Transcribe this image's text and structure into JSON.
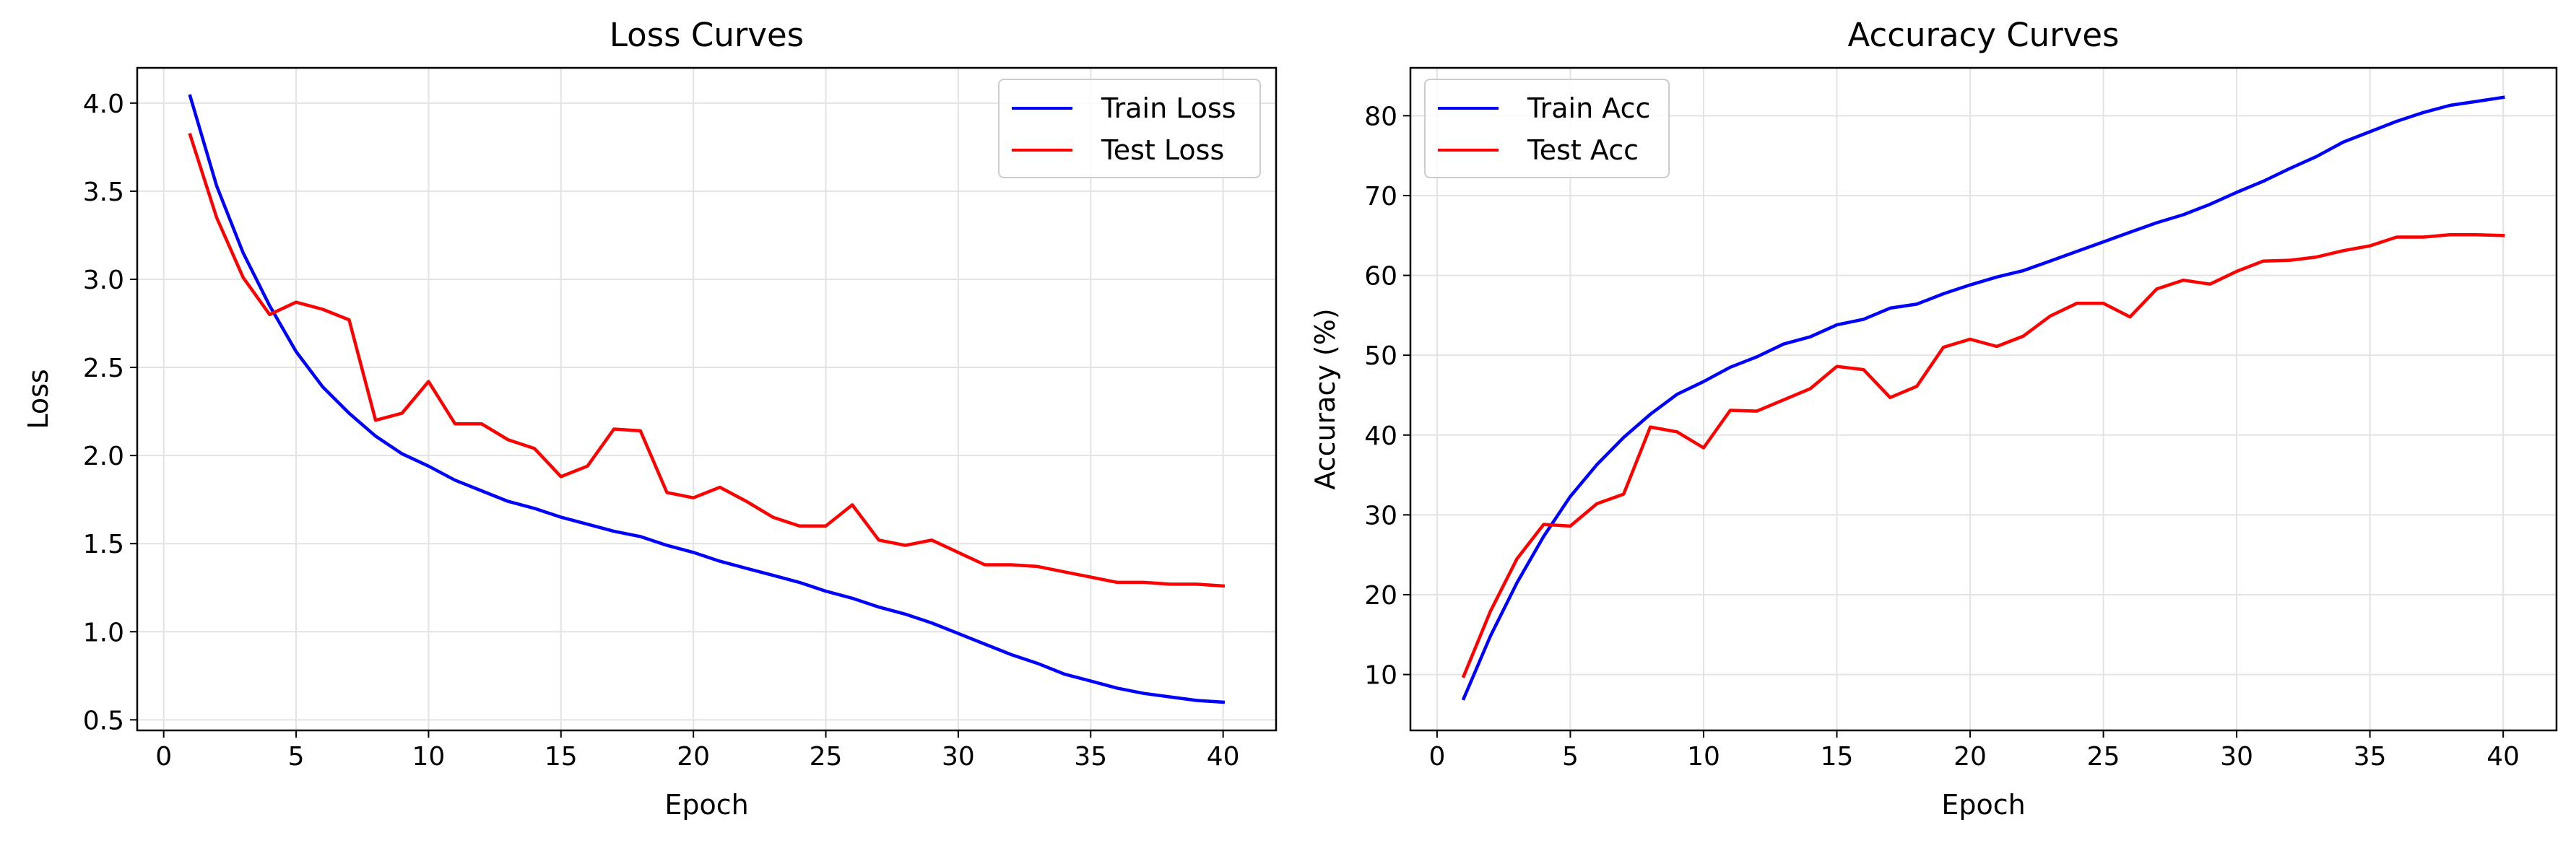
{
  "chart_data": [
    {
      "type": "line",
      "title": "Loss Curves",
      "xlabel": "Epoch",
      "ylabel": "Loss",
      "xlim": [
        -1,
        42
      ],
      "ylim": [
        0.44,
        4.2
      ],
      "xticks": [
        0,
        5,
        10,
        15,
        20,
        25,
        30,
        35,
        40
      ],
      "yticks": [
        0.5,
        1.0,
        1.5,
        2.0,
        2.5,
        3.0,
        3.5,
        4.0
      ],
      "ytick_labels": [
        "0.5",
        "1.0",
        "1.5",
        "2.0",
        "2.5",
        "3.0",
        "3.5",
        "4.0"
      ],
      "grid": true,
      "legend_position": "top-right",
      "x": [
        1,
        2,
        3,
        4,
        5,
        6,
        7,
        8,
        9,
        10,
        11,
        12,
        13,
        14,
        15,
        16,
        17,
        18,
        19,
        20,
        21,
        22,
        23,
        24,
        25,
        26,
        27,
        28,
        29,
        30,
        31,
        32,
        33,
        34,
        35,
        36,
        37,
        38,
        39,
        40
      ],
      "series": [
        {
          "name": "Train Loss",
          "color": "#0000ff",
          "values": [
            4.04,
            3.53,
            3.15,
            2.85,
            2.59,
            2.39,
            2.24,
            2.11,
            2.01,
            1.94,
            1.86,
            1.8,
            1.74,
            1.7,
            1.65,
            1.61,
            1.57,
            1.54,
            1.49,
            1.45,
            1.4,
            1.36,
            1.32,
            1.28,
            1.23,
            1.19,
            1.14,
            1.1,
            1.05,
            0.99,
            0.93,
            0.87,
            0.82,
            0.76,
            0.72,
            0.68,
            0.65,
            0.63,
            0.61,
            0.6
          ]
        },
        {
          "name": "Test Loss",
          "color": "#ff0000",
          "values": [
            3.82,
            3.35,
            3.01,
            2.8,
            2.87,
            2.83,
            2.77,
            2.2,
            2.24,
            2.42,
            2.18,
            2.18,
            2.09,
            2.04,
            1.88,
            1.94,
            2.15,
            2.14,
            1.79,
            1.76,
            1.82,
            1.74,
            1.65,
            1.6,
            1.6,
            1.72,
            1.52,
            1.49,
            1.52,
            1.45,
            1.38,
            1.38,
            1.37,
            1.34,
            1.31,
            1.28,
            1.28,
            1.27,
            1.27,
            1.26
          ]
        }
      ]
    },
    {
      "type": "line",
      "title": "Accuracy Curves",
      "xlabel": "Epoch",
      "ylabel": "Accuracy (%)",
      "xlim": [
        -1,
        42
      ],
      "ylim": [
        3,
        86
      ],
      "xticks": [
        0,
        5,
        10,
        15,
        20,
        25,
        30,
        35,
        40
      ],
      "yticks": [
        10,
        20,
        30,
        40,
        50,
        60,
        70,
        80
      ],
      "ytick_labels": [
        "10",
        "20",
        "30",
        "40",
        "50",
        "60",
        "70",
        "80"
      ],
      "grid": true,
      "legend_position": "top-left",
      "x": [
        1,
        2,
        3,
        4,
        5,
        6,
        7,
        8,
        9,
        10,
        11,
        12,
        13,
        14,
        15,
        16,
        17,
        18,
        19,
        20,
        21,
        22,
        23,
        24,
        25,
        26,
        27,
        28,
        29,
        30,
        31,
        32,
        33,
        34,
        35,
        36,
        37,
        38,
        39,
        40
      ],
      "series": [
        {
          "name": "Train Acc",
          "color": "#0000ff",
          "values": [
            7.0,
            14.8,
            21.5,
            27.3,
            32.3,
            36.3,
            39.7,
            42.6,
            45.1,
            46.7,
            48.5,
            49.8,
            51.4,
            52.3,
            53.8,
            54.5,
            55.9,
            56.4,
            57.7,
            58.8,
            59.8,
            60.6,
            61.8,
            63.0,
            64.2,
            65.4,
            66.6,
            67.6,
            68.9,
            70.4,
            71.8,
            73.4,
            74.9,
            76.7,
            78.0,
            79.3,
            80.4,
            81.3,
            81.8,
            82.3
          ]
        },
        {
          "name": "Test Acc",
          "color": "#ff0000",
          "values": [
            9.8,
            17.9,
            24.5,
            28.8,
            28.6,
            31.4,
            32.6,
            41.0,
            40.4,
            38.4,
            43.1,
            43.0,
            44.4,
            45.8,
            48.6,
            48.2,
            44.7,
            46.1,
            51.0,
            52.0,
            51.1,
            52.4,
            54.9,
            56.5,
            56.5,
            54.8,
            58.3,
            59.4,
            58.9,
            60.5,
            61.8,
            61.9,
            62.3,
            63.1,
            63.7,
            64.8,
            64.8,
            65.1,
            65.1,
            65.0
          ]
        }
      ]
    }
  ]
}
